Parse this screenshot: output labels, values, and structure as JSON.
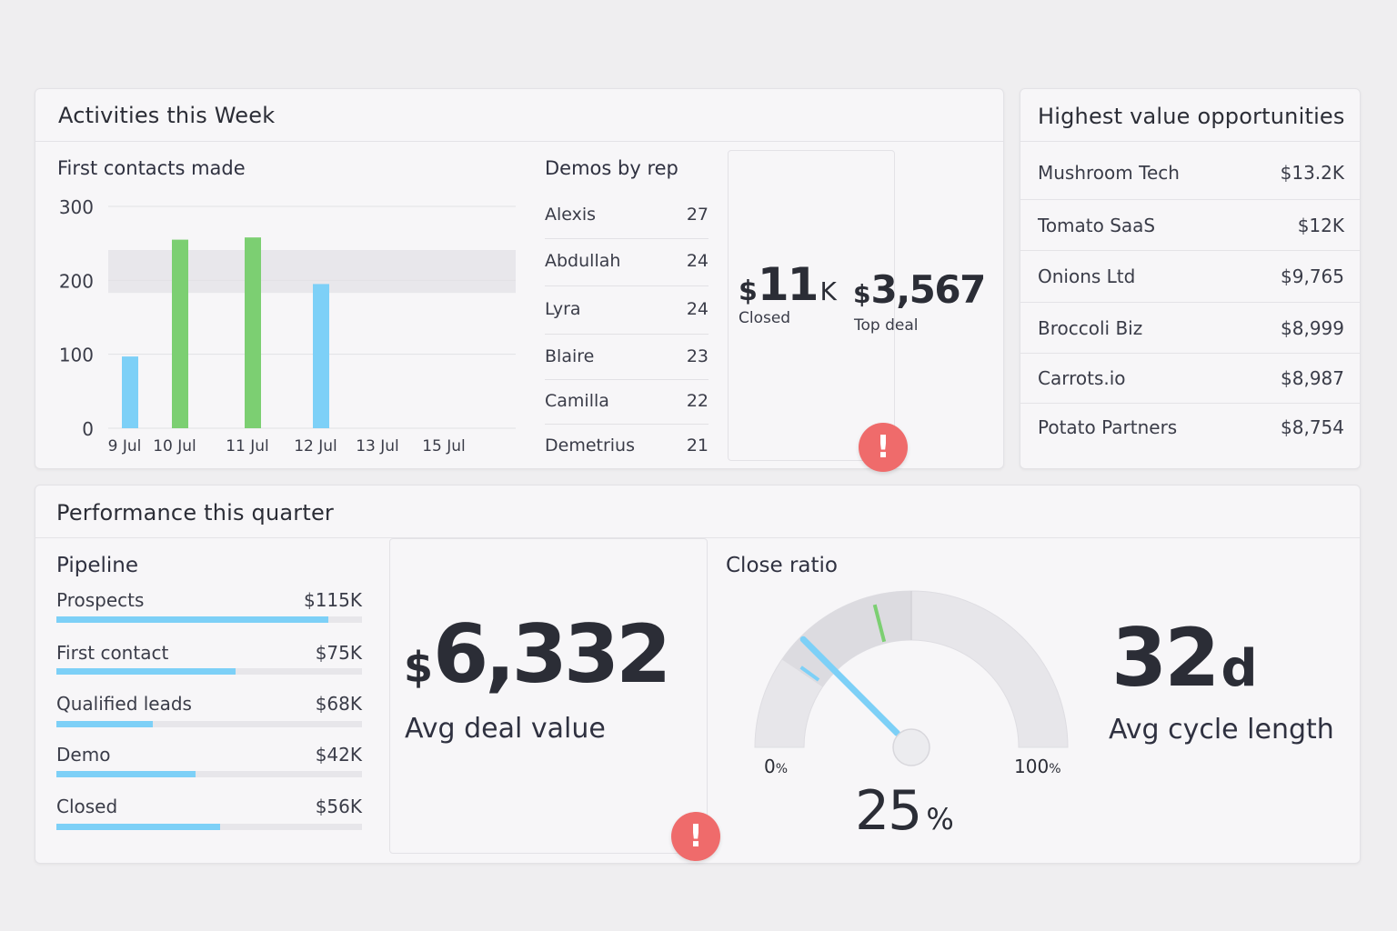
{
  "activities": {
    "title": "Activities this Week",
    "first_contacts_title": "First contacts made",
    "demos_title": "Demos by rep",
    "demos": [
      {
        "name": "Alexis",
        "value": "27"
      },
      {
        "name": "Abdullah",
        "value": "24"
      },
      {
        "name": "Lyra",
        "value": "24"
      },
      {
        "name": "Blaire",
        "value": "23"
      },
      {
        "name": "Camilla",
        "value": "22"
      },
      {
        "name": "Demetrius",
        "value": "21"
      }
    ],
    "closed": {
      "currency": "$",
      "value": "11",
      "suffix": "K",
      "label": "Closed"
    },
    "top_deal": {
      "currency": "$",
      "value": "3,567",
      "label": "Top deal"
    },
    "alert_glyph": "!"
  },
  "chart_data": {
    "type": "bar",
    "title": "First contacts made",
    "categories": [
      "9 Jul",
      "10 Jul",
      "11 Jul",
      "12 Jul",
      "13 Jul",
      "15 Jul"
    ],
    "values": [
      97,
      255,
      258,
      195,
      0,
      0
    ],
    "colors": [
      "#7dd0f7",
      "#7ccf72",
      "#7ccf72",
      "#7dd0f7",
      "#7dd0f7",
      "#7dd0f7"
    ],
    "yticks": [
      0,
      100,
      200,
      300
    ],
    "ylim": [
      0,
      300
    ],
    "target_band": [
      183,
      241
    ],
    "xlabel": "",
    "ylabel": "",
    "grid": true
  },
  "opportunities": {
    "title": "Highest value opportunities",
    "items": [
      {
        "name": "Mushroom Tech",
        "value": "$13.2K"
      },
      {
        "name": "Tomato SaaS",
        "value": "$12K"
      },
      {
        "name": "Onions Ltd",
        "value": "$9,765"
      },
      {
        "name": "Broccoli Biz",
        "value": "$8,999"
      },
      {
        "name": "Carrots.io",
        "value": "$8,987"
      },
      {
        "name": "Potato Partners",
        "value": "$8,754"
      }
    ]
  },
  "performance": {
    "title": "Performance this quarter",
    "pipeline_title": "Pipeline",
    "pipeline": [
      {
        "name": "Prospects",
        "value": "$115K",
        "fraction": 0.89
      },
      {
        "name": "First contact",
        "value": "$75K",
        "fraction": 0.585
      },
      {
        "name": "Qualified leads",
        "value": "$68K",
        "fraction": 0.315
      },
      {
        "name": "Demo",
        "value": "$42K",
        "fraction": 0.455
      },
      {
        "name": "Closed",
        "value": "$56K",
        "fraction": 0.535
      }
    ],
    "avg_deal": {
      "currency": "$",
      "value": "6,332",
      "label": "Avg deal value"
    },
    "alert_glyph": "!",
    "close_ratio": {
      "title": "Close ratio",
      "value": "25",
      "unit": "%",
      "min_label": "0",
      "max_label": "100",
      "pct_sign": "%",
      "fraction": 0.25,
      "target_fraction": 0.42,
      "prev_fraction": 0.2,
      "band_from": 0.19,
      "band_to": 0.5
    },
    "cycle": {
      "value": "32",
      "unit": "d",
      "label": "Avg cycle length"
    }
  },
  "colors": {
    "blue": "#7dd0f7",
    "green": "#7ccf72",
    "alert": "#ef6b6b",
    "text": "#2b2d36"
  }
}
